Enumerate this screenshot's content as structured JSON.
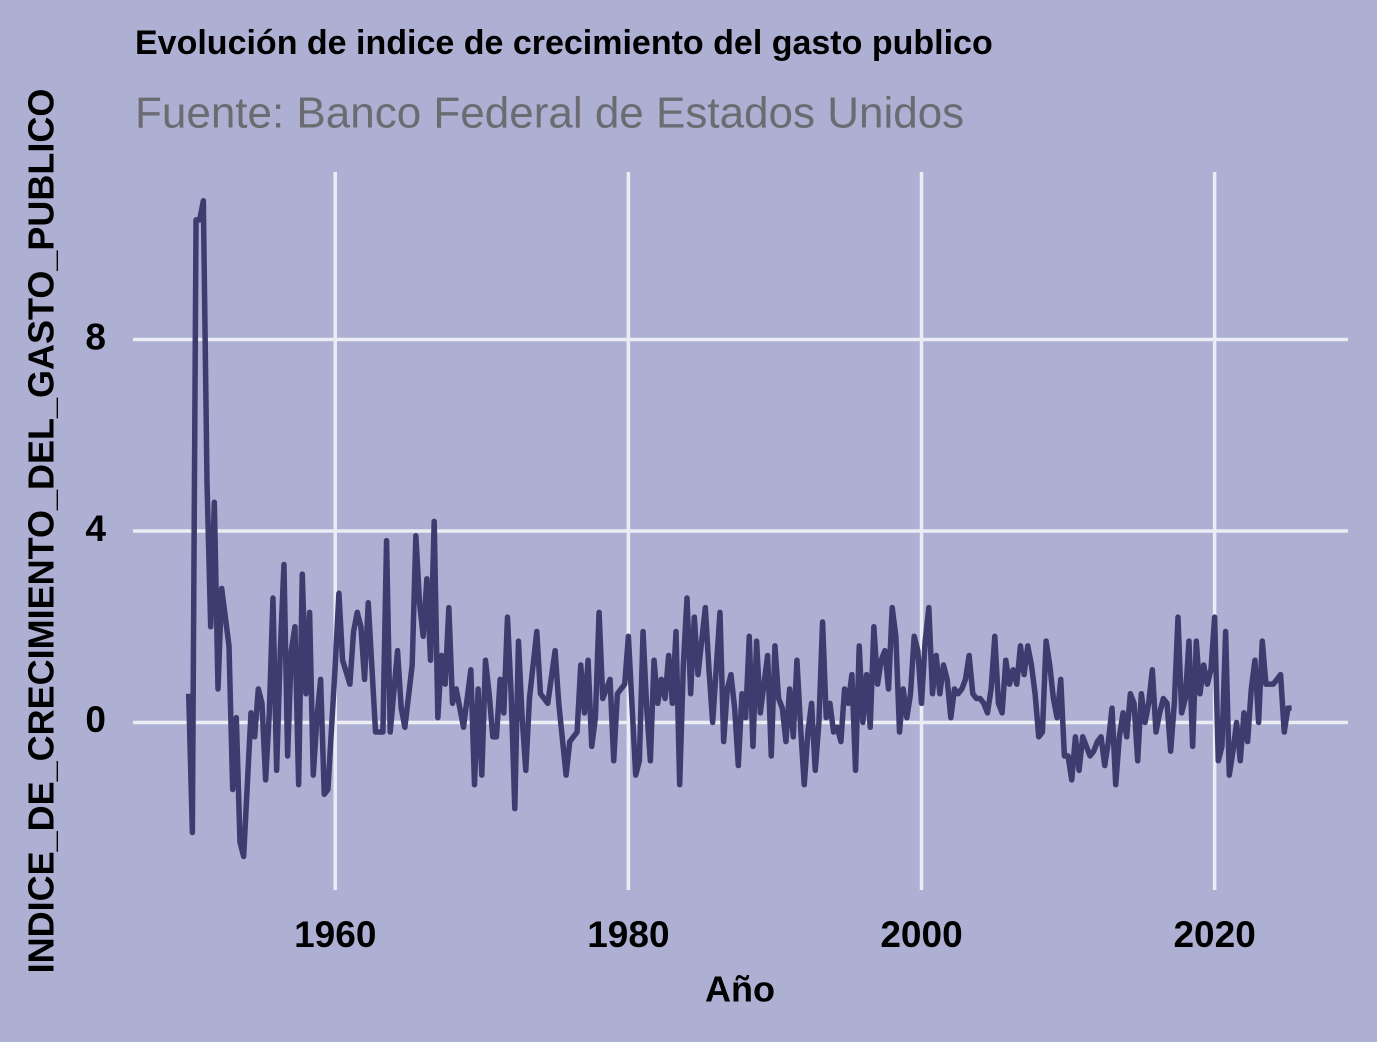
{
  "chart_data": {
    "type": "line",
    "title": "Evolución de indice de crecimiento del gasto publico",
    "subtitle": "Fuente: Banco Federal de Estados Unidos",
    "x_label": "Año",
    "y_label": "INDICE_DE_CRECIMIENTO_DEL_GASTO_PUBLICO",
    "xlim": [
      1946.2,
      2029.1
    ],
    "ylim": [
      -3.5,
      11.5
    ],
    "xticks": [
      1960,
      1980,
      2000,
      2020
    ],
    "yticks": [
      0,
      4,
      8
    ],
    "grid": true,
    "x": [
      1950,
      1950.25,
      1950.5,
      1950.75,
      1951,
      1951.25,
      1951.5,
      1951.75,
      1952,
      1952.25,
      1952.5,
      1952.75,
      1953,
      1953.25,
      1953.5,
      1953.75,
      1954.25,
      1954.5,
      1954.75,
      1955,
      1955.25,
      1955.5,
      1955.75,
      1956,
      1956.25,
      1956.5,
      1956.75,
      1957,
      1957.25,
      1957.5,
      1957.75,
      1958,
      1958.25,
      1958.5,
      1958.75,
      1959,
      1959.25,
      1959.5,
      1960,
      1960.25,
      1960.5,
      1961,
      1961.25,
      1961.5,
      1961.75,
      1962,
      1962.25,
      1962.75,
      1963.25,
      1963.5,
      1963.75,
      1964.25,
      1964.5,
      1964.75,
      1965.25,
      1965.5,
      1965.75,
      1966,
      1966.25,
      1966.5,
      1966.75,
      1967,
      1967.25,
      1967.5,
      1967.75,
      1968,
      1968.25,
      1968.75,
      1969.25,
      1969.5,
      1969.75,
      1970,
      1970.25,
      1970.5,
      1970.75,
      1971,
      1971.25,
      1971.5,
      1971.75,
      1972,
      1972.25,
      1972.5,
      1972.75,
      1973,
      1973.25,
      1973.75,
      1974,
      1974.5,
      1975,
      1975.25,
      1975.75,
      1976,
      1976.5,
      1976.75,
      1977,
      1977.25,
      1977.5,
      1977.75,
      1978,
      1978.25,
      1978.75,
      1979,
      1979.25,
      1979.75,
      1980,
      1980.5,
      1980.75,
      1981,
      1981.25,
      1981.5,
      1981.75,
      1982,
      1982.25,
      1982.5,
      1982.75,
      1983,
      1983.25,
      1983.5,
      1983.75,
      1984,
      1984.25,
      1984.5,
      1984.75,
      1985.25,
      1985.5,
      1985.75,
      1986.25,
      1986.5,
      1986.75,
      1987,
      1987.25,
      1987.5,
      1987.75,
      1988,
      1988.25,
      1988.5,
      1988.75,
      1989,
      1989.5,
      1989.75,
      1990,
      1990.25,
      1990.5,
      1990.75,
      1991,
      1991.25,
      1991.5,
      1991.75,
      1992,
      1992.25,
      1992.5,
      1992.75,
      1993,
      1993.25,
      1993.5,
      1993.75,
      1994,
      1994.25,
      1994.5,
      1994.75,
      1995,
      1995.25,
      1995.5,
      1995.75,
      1996,
      1996.25,
      1996.5,
      1996.75,
      1997,
      1997.25,
      1997.5,
      1997.75,
      1998,
      1998.25,
      1998.5,
      1998.75,
      1999,
      1999.25,
      1999.5,
      1999.75,
      2000,
      2000.25,
      2000.5,
      2000.75,
      2001,
      2001.25,
      2001.5,
      2001.75,
      2002,
      2002.25,
      2002.5,
      2002.75,
      2003,
      2003.25,
      2003.5,
      2003.75,
      2004,
      2004.25,
      2004.5,
      2004.75,
      2005,
      2005.25,
      2005.5,
      2005.75,
      2006,
      2006.25,
      2006.5,
      2006.75,
      2007,
      2007.25,
      2007.5,
      2007.75,
      2008,
      2008.25,
      2008.5,
      2008.75,
      2009,
      2009.25,
      2009.5,
      2009.75,
      2010,
      2010.25,
      2010.5,
      2010.75,
      2011,
      2011.25,
      2011.5,
      2011.75,
      2012,
      2012.25,
      2012.5,
      2012.75,
      2013,
      2013.25,
      2013.5,
      2013.75,
      2014,
      2014.25,
      2014.5,
      2014.75,
      2015,
      2015.25,
      2015.5,
      2015.75,
      2016,
      2016.25,
      2016.5,
      2016.75,
      2017,
      2017.25,
      2017.5,
      2017.75,
      2018,
      2018.25,
      2018.5,
      2018.75,
      2019,
      2019.25,
      2019.5,
      2019.75,
      2020,
      2020.25,
      2020.5,
      2020.75,
      2021,
      2021.25,
      2021.5,
      2021.75,
      2022,
      2022.25,
      2022.5,
      2022.75,
      2023,
      2023.25,
      2023.5,
      2023.75,
      2024,
      2024.25,
      2024.5,
      2024.75,
      2025,
      2025.25
    ],
    "series": [
      {
        "color": "#3d3c6e",
        "values": [
          0.6,
          -2.3,
          10.5,
          10.5,
          10.9,
          5,
          2.0,
          4.6,
          0.7,
          2.8,
          2.2,
          1.6,
          -1.4,
          0.1,
          -2.5,
          -2.8,
          0.2,
          -0.3,
          0.7,
          0.4,
          -1.2,
          0.2,
          2.6,
          -1.0,
          1.5,
          3.3,
          -0.7,
          1.5,
          2.0,
          -1.3,
          3.1,
          0.6,
          2.3,
          -1.1,
          0.1,
          0.9,
          -1.5,
          -1.4,
          1.2,
          2.7,
          1.3,
          0.8,
          1.9,
          2.3,
          2.0,
          0.9,
          2.5,
          -0.2,
          -0.2,
          3.8,
          -0.2,
          1.5,
          0.3,
          -0.1,
          1.2,
          3.9,
          2.5,
          1.8,
          3.0,
          1.3,
          4.2,
          0.1,
          1.4,
          0.8,
          2.4,
          0.4,
          0.7,
          -0.1,
          1.1,
          -1.3,
          0.7,
          -1.1,
          1.3,
          0.6,
          -0.3,
          -0.3,
          0.9,
          0.2,
          2.2,
          0.6,
          -1.8,
          1.7,
          0.1,
          -1.0,
          0.5,
          1.9,
          0.6,
          0.4,
          1.5,
          0.4,
          -1.1,
          -0.4,
          -0.2,
          1.2,
          0.2,
          1.3,
          -0.5,
          0.1,
          2.3,
          0.5,
          0.9,
          -0.8,
          0.6,
          0.8,
          1.8,
          -1.1,
          -0.8,
          1.9,
          0.3,
          -0.8,
          1.3,
          0.4,
          0.9,
          0.5,
          1.4,
          0.4,
          1.9,
          -1.3,
          1.2,
          2.6,
          0.6,
          2.2,
          1.0,
          2.4,
          1.1,
          0.0,
          2.3,
          -0.4,
          0.7,
          1.0,
          0.3,
          -0.9,
          0.6,
          0.1,
          1.8,
          -0.5,
          1.7,
          0.2,
          1.4,
          -0.7,
          1.6,
          0.5,
          0.3,
          -0.4,
          0.7,
          -0.3,
          1.3,
          -0.1,
          -1.3,
          -0.2,
          0.4,
          -1.0,
          0.0,
          2.1,
          0.1,
          0.4,
          -0.2,
          -0.1,
          -0.4,
          0.7,
          0.4,
          1.0,
          -1.0,
          1.6,
          0.0,
          1.0,
          -0.1,
          2.0,
          0.8,
          1.3,
          1.5,
          0.7,
          2.4,
          1.8,
          -0.2,
          0.7,
          0.1,
          0.6,
          1.8,
          1.5,
          0.4,
          1.7,
          2.4,
          0.6,
          1.4,
          0.6,
          1.2,
          0.9,
          0.1,
          0.7,
          0.6,
          0.7,
          0.9,
          1.4,
          0.6,
          0.5,
          0.5,
          0.4,
          0.2,
          0.7,
          1.8,
          0.4,
          0.2,
          1.3,
          0.8,
          1.1,
          0.8,
          1.6,
          1.0,
          1.6,
          1.2,
          0.6,
          -0.3,
          -0.2,
          1.7,
          1.2,
          0.5,
          0.1,
          0.9,
          -0.7,
          -0.7,
          -1.2,
          -0.3,
          -1.0,
          -0.3,
          -0.5,
          -0.7,
          -0.6,
          -0.4,
          -0.3,
          -0.9,
          -0.4,
          0.3,
          -1.3,
          -0.3,
          0.2,
          -0.3,
          0.6,
          0.4,
          -0.8,
          0.6,
          0.0,
          0.4,
          1.1,
          -0.2,
          0.2,
          0.5,
          0.4,
          -0.6,
          0.4,
          2.2,
          0.2,
          0.5,
          1.7,
          -0.5,
          1.7,
          0.6,
          1.2,
          0.8,
          1.1,
          2.2,
          -0.8,
          -0.5,
          1.9,
          -1.1,
          -0.6,
          0.0,
          -0.8,
          0.2,
          -0.4,
          0.7,
          1.3,
          0.0,
          1.7,
          0.8,
          0.8,
          0.8,
          0.9,
          1.0,
          -0.2,
          0.3,
          0.3
        ]
      }
    ]
  }
}
